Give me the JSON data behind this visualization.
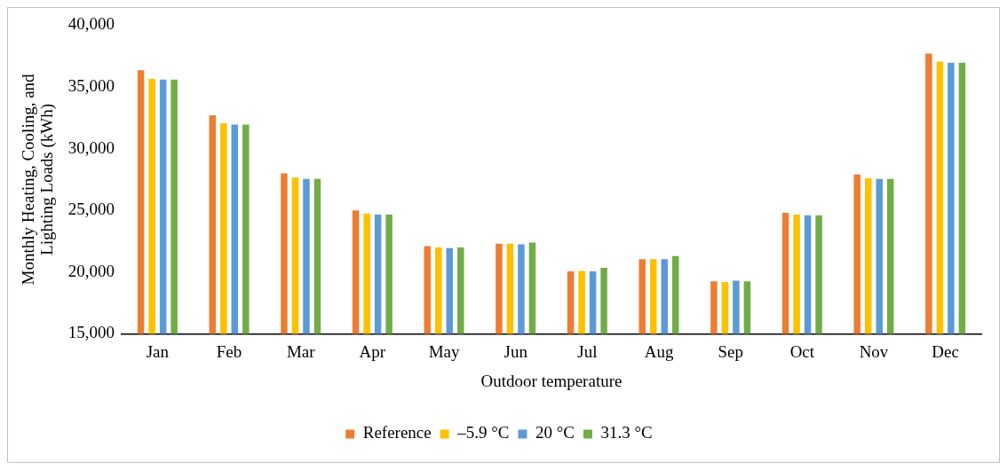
{
  "chart_data": {
    "type": "bar",
    "xlabel": "Outdoor temperature",
    "ylabel": "Monthly Heating, Cooling, and Lighting Loads (kWh)",
    "categories": [
      "Jan",
      "Feb",
      "Mar",
      "Apr",
      "May",
      "Jun",
      "Jul",
      "Aug",
      "Sep",
      "Oct",
      "Nov",
      "Dec"
    ],
    "series": [
      {
        "name": "Reference",
        "color": "#ed7d31",
        "values": [
          36350,
          32700,
          28000,
          25000,
          22100,
          22300,
          20050,
          21050,
          19250,
          24800,
          27900,
          37700
        ]
      },
      {
        "name": "–5.9 °C",
        "color": "#ffc000",
        "values": [
          35650,
          32050,
          27650,
          24750,
          22000,
          22300,
          20100,
          21050,
          19200,
          24650,
          27600,
          37050
        ]
      },
      {
        "name": "20 °C",
        "color": "#5b9bd5",
        "values": [
          35600,
          31950,
          27550,
          24650,
          21950,
          22250,
          20050,
          21050,
          19300,
          24600,
          27550,
          36950
        ]
      },
      {
        "name": "31.3 °C",
        "color": "#70ad47",
        "values": [
          35600,
          31950,
          27550,
          24650,
          22000,
          22400,
          20350,
          21300,
          19250,
          24600,
          27550,
          36950
        ]
      }
    ],
    "ylim": [
      15000,
      40000
    ],
    "yticks": [
      {
        "value": 15000,
        "label": "15,000"
      },
      {
        "value": 20000,
        "label": "20,000"
      },
      {
        "value": 25000,
        "label": "25,000"
      },
      {
        "value": 30000,
        "label": "30,000"
      },
      {
        "value": 35000,
        "label": "35,000"
      },
      {
        "value": 40000,
        "label": "40,000"
      }
    ],
    "grid": false,
    "legend": "bottom"
  }
}
